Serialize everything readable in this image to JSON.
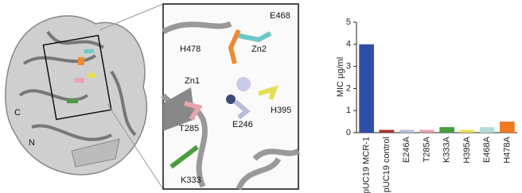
{
  "chart_data": {
    "type": "bar",
    "ylabel": "MIC µg/ml",
    "categories": [
      "pUC19 MCR-1",
      "pUC19 control",
      "E246A",
      "T285A",
      "K333A",
      "H395A",
      "E468A",
      "H478A"
    ],
    "values": [
      4,
      0.125,
      0.125,
      0.125,
      0.25,
      0.125,
      0.25,
      0.5
    ],
    "colors": [
      "#2f4ea8",
      "#a8322e",
      "#b6bcdc",
      "#e9a3aa",
      "#4a9e3f",
      "#e6df55",
      "#b3dcd6",
      "#ef7a22"
    ],
    "ylim": [
      0,
      5
    ],
    "yticks": [
      0,
      1,
      2,
      3,
      4,
      5
    ],
    "grid": false
  },
  "structure_labels": {
    "overview": [
      "C",
      "N"
    ],
    "zoom": [
      "E468",
      "H478",
      "Zn2",
      "Zn1",
      "H395",
      "T285",
      "E246",
      "K333"
    ]
  }
}
